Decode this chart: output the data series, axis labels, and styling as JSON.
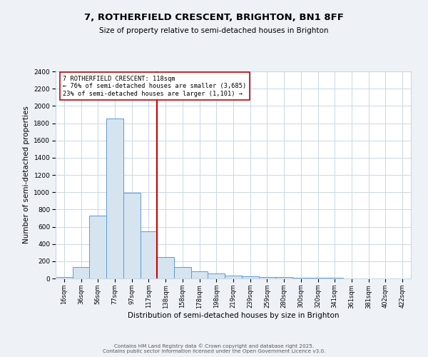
{
  "title": "7, ROTHERFIELD CRESCENT, BRIGHTON, BN1 8FF",
  "subtitle": "Size of property relative to semi-detached houses in Brighton",
  "xlabel": "Distribution of semi-detached houses by size in Brighton",
  "ylabel": "Number of semi-detached properties",
  "bar_labels": [
    "16sqm",
    "36sqm",
    "56sqm",
    "77sqm",
    "97sqm",
    "117sqm",
    "138sqm",
    "158sqm",
    "178sqm",
    "198sqm",
    "219sqm",
    "239sqm",
    "259sqm",
    "280sqm",
    "300sqm",
    "320sqm",
    "341sqm",
    "361sqm",
    "381sqm",
    "402sqm",
    "422sqm"
  ],
  "bar_heights": [
    15,
    130,
    725,
    1850,
    990,
    545,
    250,
    130,
    80,
    55,
    35,
    25,
    20,
    15,
    10,
    5,
    5,
    3,
    2,
    1,
    1
  ],
  "bar_color": "#d6e4f0",
  "bar_edge_color": "#5b9bd5",
  "vline_color": "#cc0000",
  "annotation_text": "7 ROTHERFIELD CRESCENT: 118sqm\n← 76% of semi-detached houses are smaller (3,685)\n23% of semi-detached houses are larger (1,101) →",
  "annotation_box_color": "#cc0000",
  "ylim": [
    0,
    2400
  ],
  "yticks": [
    0,
    200,
    400,
    600,
    800,
    1000,
    1200,
    1400,
    1600,
    1800,
    2000,
    2200,
    2400
  ],
  "footer": "Contains HM Land Registry data © Crown copyright and database right 2025.\nContains public sector information licensed under the Open Government Licence v3.0.",
  "background_color": "#eef2f7",
  "plot_background_color": "#ffffff",
  "grid_color": "#c8d8e8"
}
